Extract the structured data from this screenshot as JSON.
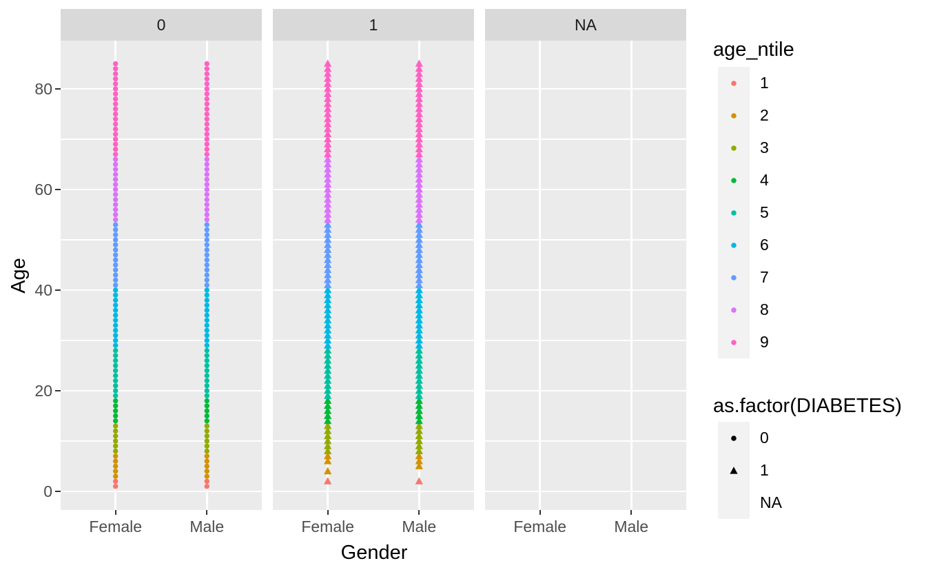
{
  "chart_data": {
    "type": "scatter",
    "title": "",
    "xlabel": "Gender",
    "ylabel": "Age",
    "x_categories": [
      "Female",
      "Male"
    ],
    "y_axis": {
      "major_ticks": [
        0,
        20,
        40,
        60,
        80
      ],
      "minor_ticks": [
        10,
        30,
        50,
        70
      ],
      "data_range": [
        1,
        85
      ]
    },
    "facets": [
      {
        "label": "0",
        "point_shape": "circle",
        "columns": [
          {
            "category": "Female",
            "age_segments": [
              [
                1,
                85
              ]
            ]
          },
          {
            "category": "Male",
            "age_segments": [
              [
                1,
                85
              ]
            ]
          }
        ]
      },
      {
        "label": "1",
        "point_shape": "triangle",
        "columns": [
          {
            "category": "Female",
            "age_segments": [
              [
                2,
                2
              ],
              [
                4,
                4
              ],
              [
                6,
                85
              ]
            ]
          },
          {
            "category": "Male",
            "age_segments": [
              [
                2,
                2
              ],
              [
                5,
                85
              ]
            ]
          }
        ]
      },
      {
        "label": "NA",
        "point_shape": "none",
        "columns": [
          {
            "category": "Female",
            "age_segments": []
          },
          {
            "category": "Male",
            "age_segments": []
          }
        ]
      }
    ],
    "age_ntile_breaks": [
      3,
      8,
      14,
      19,
      29,
      41,
      54,
      67
    ],
    "color_legend": {
      "title": "age_ntile",
      "entries": [
        {
          "label": "1",
          "color": "#F8766D"
        },
        {
          "label": "2",
          "color": "#D39200"
        },
        {
          "label": "3",
          "color": "#93AA00"
        },
        {
          "label": "4",
          "color": "#00BA38"
        },
        {
          "label": "5",
          "color": "#00C19F"
        },
        {
          "label": "6",
          "color": "#00B9E3"
        },
        {
          "label": "7",
          "color": "#619CFF"
        },
        {
          "label": "8",
          "color": "#DB72FB"
        },
        {
          "label": "9",
          "color": "#FF61C3"
        }
      ]
    },
    "shape_legend": {
      "title": "as.factor(DIABETES)",
      "entries": [
        {
          "label": "0",
          "shape": "circle"
        },
        {
          "label": "1",
          "shape": "triangle"
        },
        {
          "label": "NA",
          "shape": "none"
        }
      ]
    },
    "theme": {
      "panel_bg": "#EBEBEB",
      "strip_bg": "#D9D9D9",
      "grid_color": "#FFFFFF",
      "tick_text_color": "#4D4D4D",
      "strip_text_color": "#1A1A1A",
      "axis_title_color": "#000000",
      "legend_text_color": "#000000",
      "legend_key_bg": "#F2F2F2",
      "tick_mark_color": "#333333",
      "shape_glyph_color": "#000000"
    }
  }
}
